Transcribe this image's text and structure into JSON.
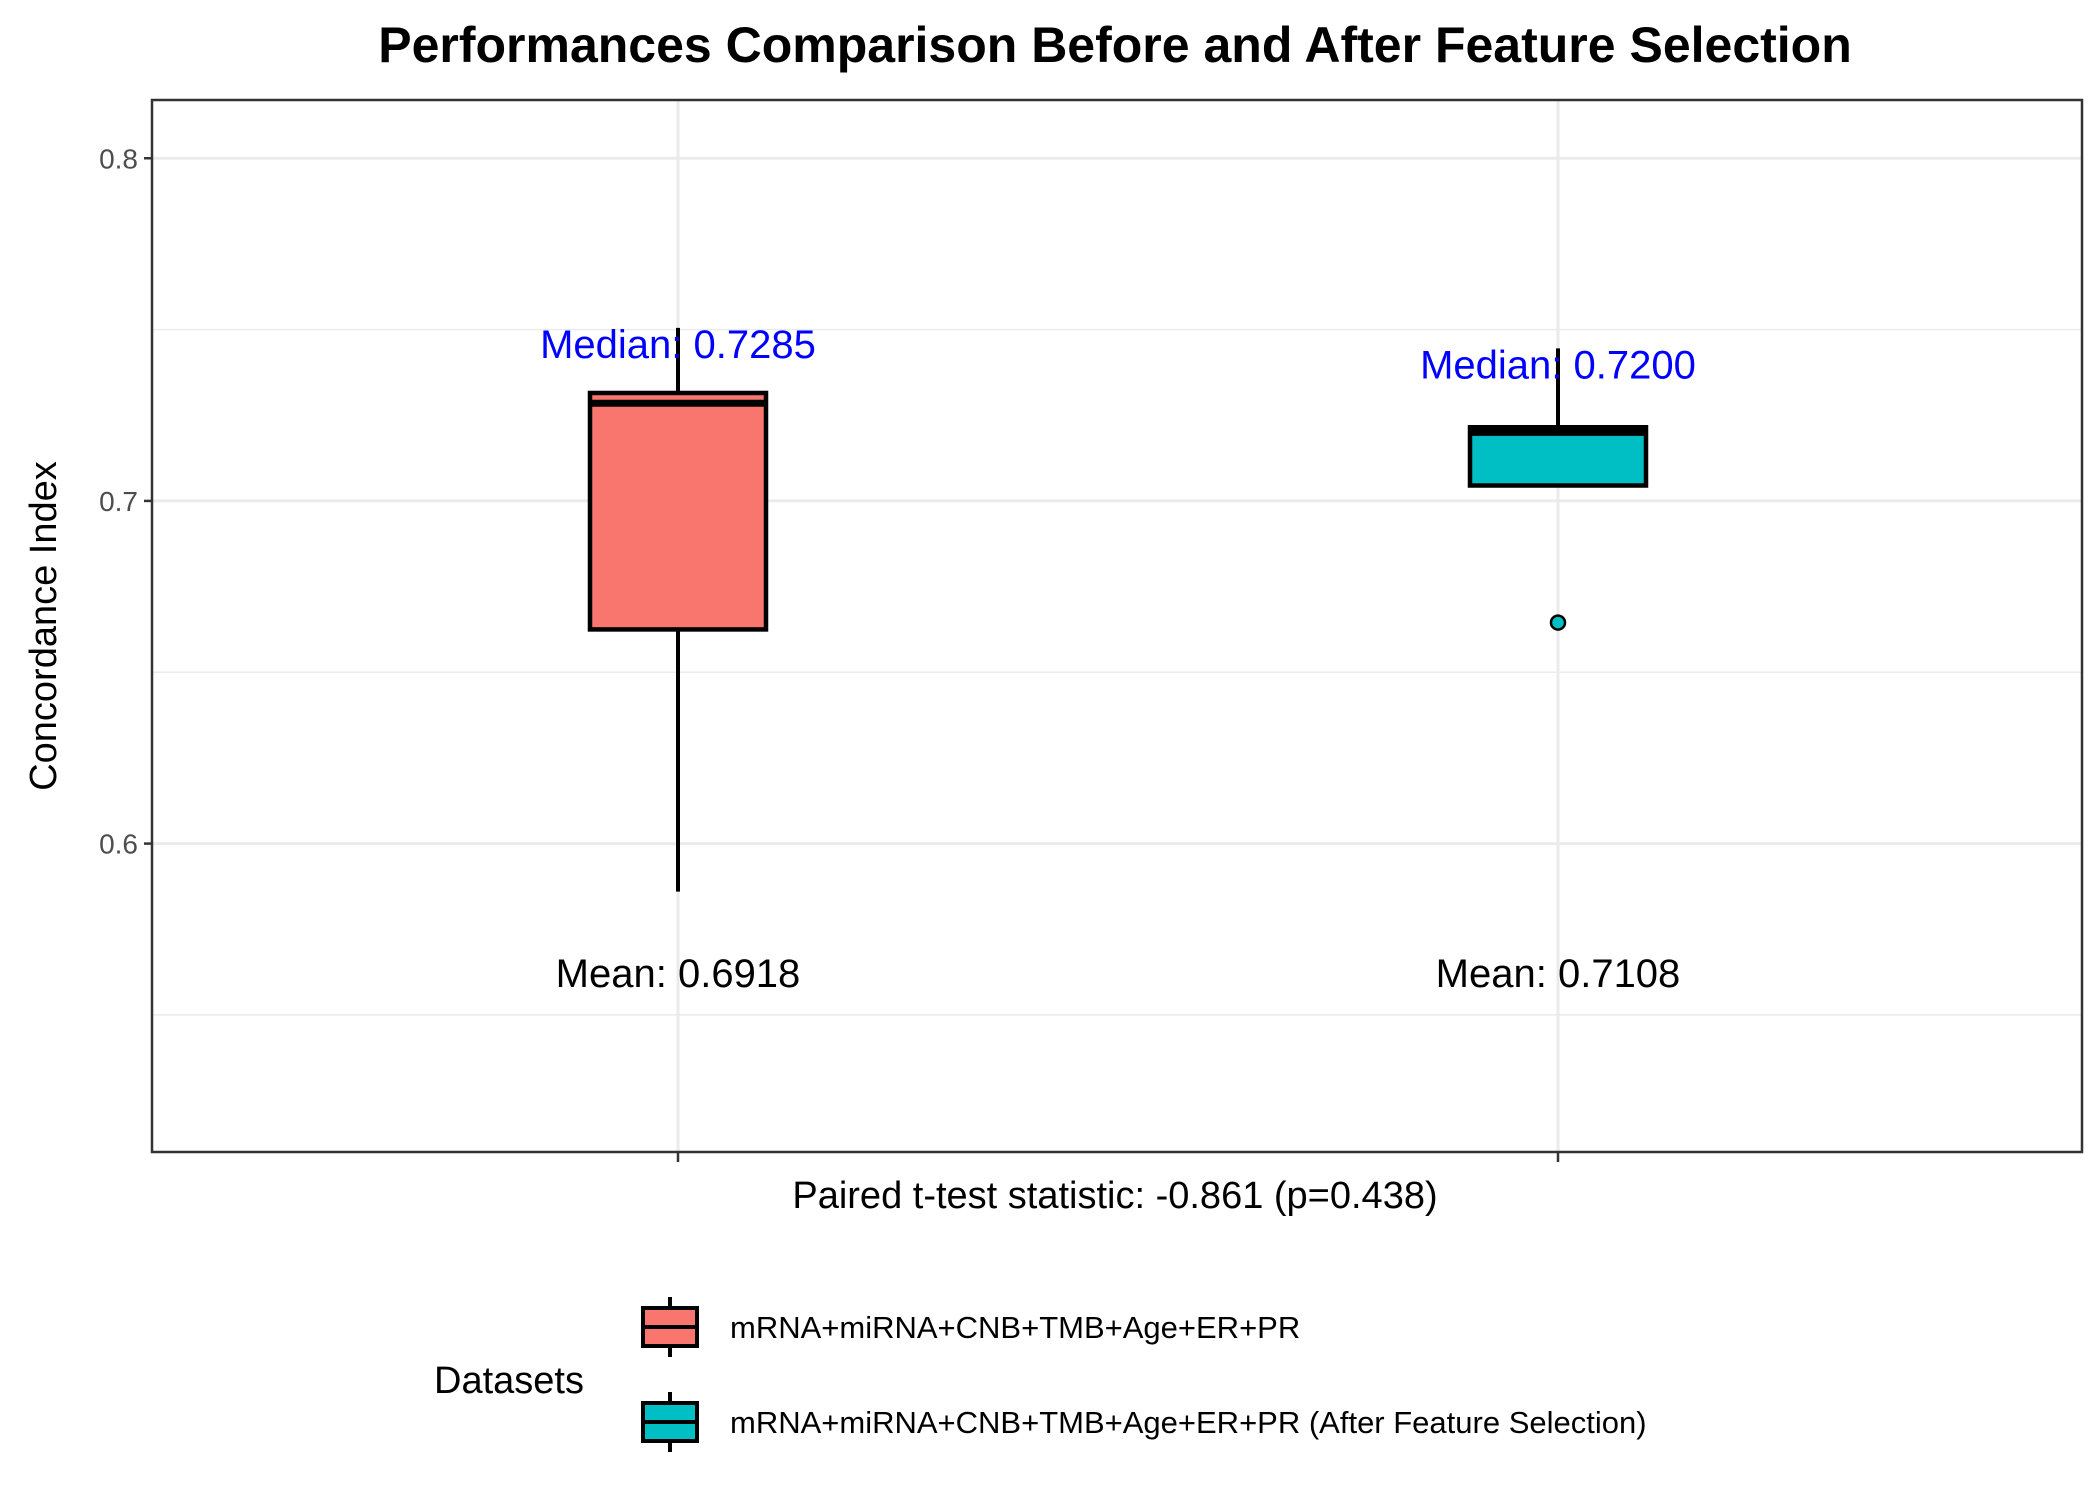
{
  "chart_data": {
    "type": "boxplot",
    "title": "Performances Comparison Before and After Feature Selection",
    "xlabel": "Paired t-test statistic: -0.861 (p=0.438)",
    "ylabel": "Concordance Index",
    "ylim": [
      0.51,
      0.817
    ],
    "yticks": [
      0.6,
      0.7,
      0.8
    ],
    "ytick_labels": [
      "0.6",
      "0.7",
      "0.8"
    ],
    "grid": true,
    "legend": {
      "title": "Datasets",
      "position": "bottom"
    },
    "series": [
      {
        "name": "mRNA+miRNA+CNB+TMB+Age+ER+PR",
        "color": "#F8766D",
        "min": 0.586,
        "q1": 0.6625,
        "median": 0.7285,
        "q3": 0.7315,
        "max": 0.7505,
        "outliers": [],
        "median_label": "Median: 0.7285",
        "mean_label": "Mean: 0.6918"
      },
      {
        "name": "mRNA+miRNA+CNB+TMB+Age+ER+PR (After Feature Selection)",
        "color": "#00BFC4",
        "min": 0.7045,
        "q1": 0.7045,
        "median": 0.72,
        "q3": 0.7215,
        "max": 0.7445,
        "outliers": [
          0.6645
        ],
        "median_label": "Median: 0.7200",
        "mean_label": "Mean: 0.7108"
      }
    ]
  },
  "colors": {
    "median_label": "#0000FF",
    "grid": "#EBEBEB",
    "border": "#333333",
    "tick_label": "#4D4D4D"
  }
}
